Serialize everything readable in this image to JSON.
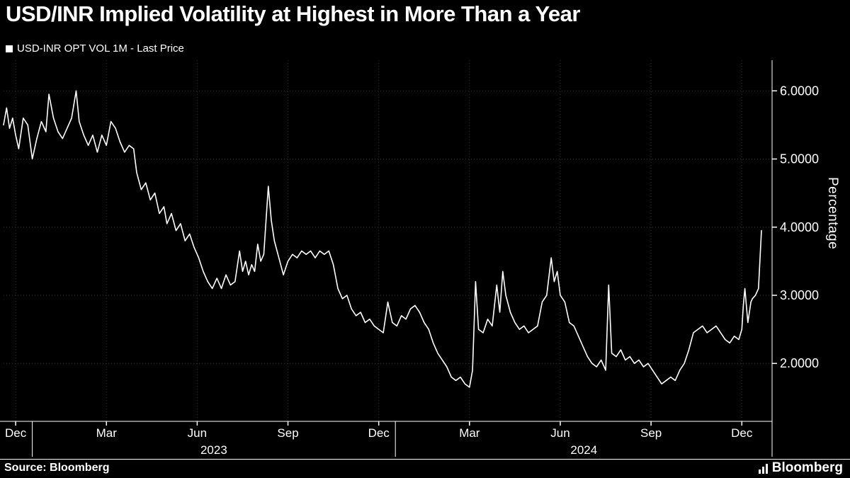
{
  "title": "USD/INR Implied Volatility at Highest in More Than a Year",
  "legend": {
    "marker": "white-square",
    "label": "USD-INR OPT VOL 1M - Last Price"
  },
  "footer": {
    "source": "Source: Bloomberg",
    "brand": "Bloomberg"
  },
  "colors": {
    "background": "#000000",
    "line": "#ffffff",
    "text": "#ffffff",
    "grid": "#323232"
  },
  "chart_data": {
    "type": "line",
    "title": "USD/INR Implied Volatility at Highest in More Than a Year",
    "series_name": "USD-INR OPT VOL 1M - Last Price",
    "ylabel": "Percentage",
    "grid": "dotted",
    "legend_position": "top-left",
    "ylim": [
      1.15,
      6.45
    ],
    "y_ticks": [
      2,
      3,
      4,
      5,
      6
    ],
    "y_tick_labels": [
      "2.0000",
      "3.0000",
      "4.0000",
      "5.0000",
      "6.0000"
    ],
    "xlim_months": [
      -0.4,
      25.0
    ],
    "x_ticks": [
      {
        "m": 0,
        "label": "Dec"
      },
      {
        "m": 3,
        "label": "Mar"
      },
      {
        "m": 6,
        "label": "Jun"
      },
      {
        "m": 9,
        "label": "Sep"
      },
      {
        "m": 12,
        "label": "Dec"
      },
      {
        "m": 15,
        "label": "Mar"
      },
      {
        "m": 18,
        "label": "Jun"
      },
      {
        "m": 21,
        "label": "Sep"
      },
      {
        "m": 24,
        "label": "Dec"
      }
    ],
    "year_labels": [
      {
        "m": 6.55,
        "label": "2023"
      },
      {
        "m": 18.78,
        "label": "2024"
      }
    ],
    "year_separators_m": [
      0.55,
      12.55
    ],
    "x_months": [
      -0.4,
      -0.3,
      -0.2,
      -0.1,
      0.0,
      0.1,
      0.25,
      0.4,
      0.55,
      0.7,
      0.85,
      1.0,
      1.1,
      1.25,
      1.4,
      1.55,
      1.7,
      1.85,
      2.0,
      2.1,
      2.25,
      2.4,
      2.55,
      2.7,
      2.85,
      3.0,
      3.15,
      3.3,
      3.45,
      3.6,
      3.75,
      3.9,
      4.0,
      4.15,
      4.3,
      4.45,
      4.6,
      4.75,
      4.9,
      5.0,
      5.15,
      5.3,
      5.45,
      5.6,
      5.75,
      5.9,
      6.05,
      6.2,
      6.35,
      6.5,
      6.65,
      6.8,
      6.95,
      7.1,
      7.25,
      7.4,
      7.5,
      7.6,
      7.7,
      7.8,
      7.9,
      8.0,
      8.1,
      8.2,
      8.35,
      8.45,
      8.55,
      8.7,
      8.85,
      9.0,
      9.15,
      9.3,
      9.45,
      9.6,
      9.75,
      9.9,
      10.05,
      10.2,
      10.35,
      10.5,
      10.65,
      10.8,
      10.95,
      11.1,
      11.25,
      11.4,
      11.55,
      11.7,
      11.85,
      12.0,
      12.15,
      12.3,
      12.45,
      12.6,
      12.75,
      12.9,
      13.05,
      13.2,
      13.35,
      13.5,
      13.65,
      13.8,
      13.95,
      14.1,
      14.25,
      14.4,
      14.55,
      14.7,
      14.85,
      15.0,
      15.1,
      15.2,
      15.3,
      15.45,
      15.6,
      15.75,
      15.9,
      16.0,
      16.1,
      16.2,
      16.35,
      16.5,
      16.65,
      16.8,
      16.95,
      17.1,
      17.25,
      17.4,
      17.55,
      17.7,
      17.8,
      17.9,
      18.0,
      18.15,
      18.3,
      18.45,
      18.6,
      18.75,
      18.9,
      19.05,
      19.2,
      19.35,
      19.5,
      19.6,
      19.7,
      19.85,
      20.0,
      20.15,
      20.3,
      20.45,
      20.6,
      20.75,
      20.9,
      21.05,
      21.2,
      21.35,
      21.5,
      21.65,
      21.8,
      21.95,
      22.1,
      22.25,
      22.4,
      22.55,
      22.7,
      22.85,
      23.0,
      23.15,
      23.3,
      23.45,
      23.6,
      23.75,
      23.9,
      24.0,
      24.05,
      24.1,
      24.2,
      24.3,
      24.35,
      24.45,
      24.55,
      24.65
    ],
    "values": [
      5.5,
      5.75,
      5.45,
      5.6,
      5.35,
      5.15,
      5.6,
      5.5,
      5.0,
      5.3,
      5.55,
      5.4,
      5.95,
      5.6,
      5.4,
      5.3,
      5.45,
      5.6,
      6.0,
      5.55,
      5.35,
      5.2,
      5.35,
      5.1,
      5.35,
      5.2,
      5.55,
      5.45,
      5.25,
      5.1,
      5.2,
      5.15,
      4.8,
      4.55,
      4.65,
      4.4,
      4.5,
      4.2,
      4.3,
      4.05,
      4.2,
      3.95,
      4.05,
      3.8,
      3.9,
      3.7,
      3.55,
      3.35,
      3.2,
      3.1,
      3.25,
      3.1,
      3.3,
      3.15,
      3.2,
      3.65,
      3.35,
      3.5,
      3.3,
      3.45,
      3.35,
      3.75,
      3.5,
      3.6,
      4.6,
      4.1,
      3.8,
      3.55,
      3.3,
      3.5,
      3.6,
      3.55,
      3.65,
      3.6,
      3.65,
      3.55,
      3.65,
      3.6,
      3.65,
      3.45,
      3.1,
      2.95,
      3.0,
      2.8,
      2.7,
      2.75,
      2.6,
      2.65,
      2.55,
      2.5,
      2.45,
      2.9,
      2.6,
      2.55,
      2.7,
      2.65,
      2.8,
      2.85,
      2.75,
      2.6,
      2.5,
      2.3,
      2.15,
      2.05,
      1.95,
      1.8,
      1.75,
      1.8,
      1.7,
      1.65,
      1.9,
      3.2,
      2.5,
      2.45,
      2.65,
      2.55,
      3.15,
      2.75,
      3.35,
      3.0,
      2.75,
      2.6,
      2.5,
      2.55,
      2.45,
      2.5,
      2.55,
      2.9,
      3.0,
      3.55,
      3.2,
      3.35,
      3.0,
      2.9,
      2.6,
      2.55,
      2.4,
      2.25,
      2.1,
      2.0,
      1.95,
      2.05,
      1.9,
      3.15,
      2.15,
      2.1,
      2.2,
      2.05,
      2.1,
      2.0,
      2.05,
      1.95,
      2.0,
      1.9,
      1.8,
      1.7,
      1.75,
      1.8,
      1.75,
      1.9,
      2.0,
      2.2,
      2.45,
      2.5,
      2.55,
      2.45,
      2.5,
      2.55,
      2.45,
      2.35,
      2.3,
      2.4,
      2.35,
      2.5,
      2.85,
      3.1,
      2.6,
      2.9,
      2.95,
      3.0,
      3.1,
      3.95
    ]
  }
}
